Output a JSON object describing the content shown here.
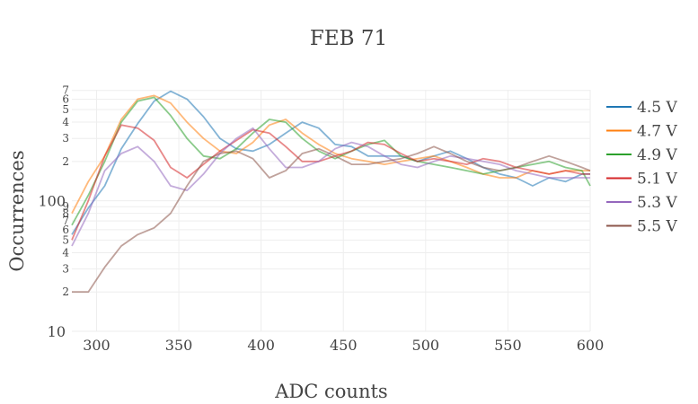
{
  "chart_data": {
    "type": "line",
    "title": "FEB 71",
    "xlabel": "ADC counts",
    "ylabel": "Occurrences",
    "x_scale": "linear",
    "y_scale": "log",
    "xlim": [
      285,
      600
    ],
    "ylim_log10": [
      1,
      2.85
    ],
    "x_ticks": [
      300,
      350,
      400,
      450,
      500,
      550,
      600
    ],
    "y_major_ticks": [
      {
        "value": 10,
        "label": "10"
      },
      {
        "value": 100,
        "label": "100"
      }
    ],
    "y_minor_ticks": [
      {
        "value": 20,
        "label": "2"
      },
      {
        "value": 30,
        "label": "3"
      },
      {
        "value": 40,
        "label": "4"
      },
      {
        "value": 50,
        "label": "5"
      },
      {
        "value": 60,
        "label": "6"
      },
      {
        "value": 70,
        "label": "7"
      },
      {
        "value": 80,
        "label": "8"
      },
      {
        "value": 90,
        "label": "9"
      },
      {
        "value": 200,
        "label": "2"
      },
      {
        "value": 300,
        "label": "3"
      },
      {
        "value": 400,
        "label": "4"
      },
      {
        "value": 500,
        "label": "5"
      },
      {
        "value": 600,
        "label": "6"
      },
      {
        "value": 700,
        "label": "7"
      }
    ],
    "grid": true,
    "legend_position": "right",
    "x": [
      285,
      295,
      305,
      315,
      325,
      335,
      345,
      355,
      365,
      375,
      385,
      395,
      405,
      415,
      425,
      435,
      445,
      455,
      465,
      475,
      485,
      495,
      505,
      515,
      525,
      535,
      545,
      555,
      565,
      575,
      585,
      595,
      600
    ],
    "series": [
      {
        "name": "4.5 V",
        "color": "#1f77b4",
        "values": [
          55,
          88,
          130,
          250,
          390,
          580,
          690,
          600,
          440,
          300,
          250,
          240,
          270,
          330,
          400,
          360,
          270,
          260,
          220,
          220,
          220,
          200,
          220,
          240,
          210,
          180,
          160,
          150,
          130,
          150,
          140,
          160,
          160
        ]
      },
      {
        "name": "4.7 V",
        "color": "#ff7f0e",
        "values": [
          80,
          140,
          220,
          420,
          600,
          640,
          560,
          400,
          300,
          240,
          230,
          280,
          380,
          420,
          330,
          270,
          230,
          210,
          200,
          190,
          200,
          210,
          220,
          200,
          180,
          160,
          150,
          150,
          170,
          160,
          170,
          170,
          170
        ]
      },
      {
        "name": "4.9 V",
        "color": "#2ca02c",
        "values": [
          65,
          110,
          200,
          400,
          580,
          620,
          450,
          300,
          220,
          210,
          250,
          330,
          420,
          400,
          300,
          240,
          210,
          240,
          270,
          290,
          220,
          200,
          190,
          180,
          170,
          160,
          170,
          180,
          190,
          200,
          180,
          170,
          130
        ]
      },
      {
        "name": "5.1 V",
        "color": "#d62728",
        "values": [
          50,
          100,
          220,
          380,
          360,
          290,
          180,
          150,
          190,
          240,
          290,
          350,
          330,
          260,
          200,
          200,
          220,
          240,
          280,
          270,
          230,
          200,
          210,
          200,
          190,
          210,
          200,
          180,
          170,
          160,
          170,
          160,
          160
        ]
      },
      {
        "name": "5.3 V",
        "color": "#9467bd",
        "values": [
          45,
          80,
          170,
          230,
          260,
          200,
          130,
          120,
          160,
          230,
          300,
          360,
          250,
          180,
          180,
          200,
          250,
          280,
          260,
          220,
          190,
          180,
          200,
          220,
          210,
          200,
          190,
          170,
          160,
          150,
          150,
          150,
          150
        ]
      },
      {
        "name": "5.5 V",
        "color": "#8c564b",
        "values": [
          20,
          20,
          31,
          45,
          55,
          62,
          80,
          130,
          200,
          230,
          240,
          210,
          150,
          170,
          230,
          250,
          220,
          190,
          190,
          200,
          210,
          230,
          260,
          230,
          200,
          180,
          170,
          180,
          200,
          220,
          200,
          180,
          170
        ]
      }
    ]
  }
}
